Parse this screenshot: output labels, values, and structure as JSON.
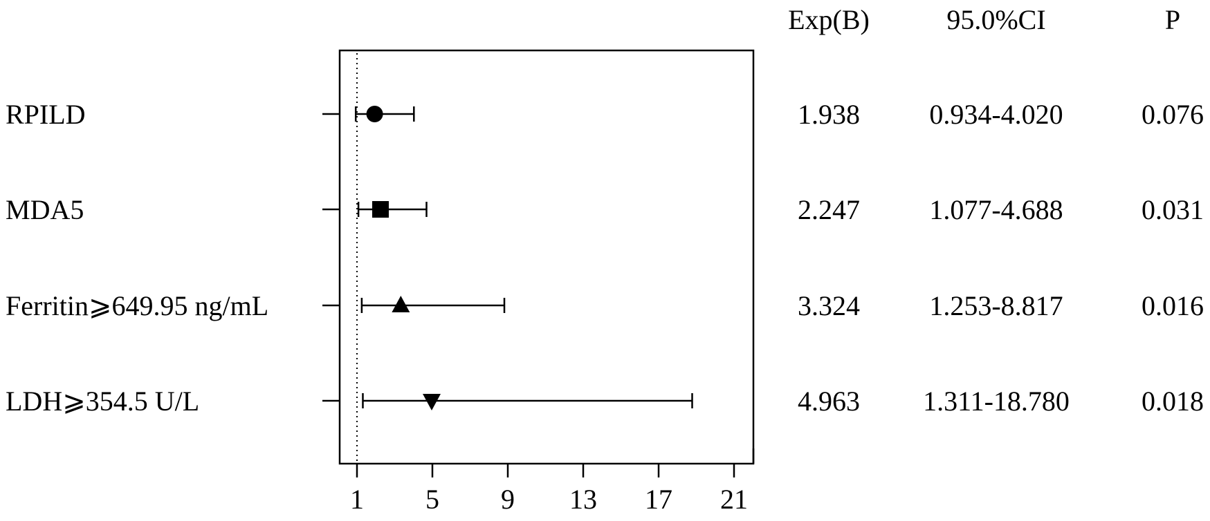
{
  "chart_data": {
    "type": "forest",
    "title": "",
    "xlabel": "",
    "ylabel": "",
    "xlim": [
      0,
      22
    ],
    "x_ticks": [
      1,
      5,
      9,
      13,
      17,
      21
    ],
    "x_tick_labels": [
      "1",
      "5",
      "9",
      "13",
      "17",
      "21"
    ],
    "reference_line": 1,
    "grid": false,
    "legend": "none",
    "columns": {
      "exp_b": "Exp(B)",
      "ci": "95.0%CI",
      "p": "P"
    },
    "rows": [
      {
        "label": "RPILD",
        "exp_b": "1.938",
        "ci": "0.934-4.020",
        "p": "0.076",
        "estimate": 1.938,
        "ci_low": 0.934,
        "ci_high": 4.02,
        "marker": "circle"
      },
      {
        "label": "MDA5",
        "exp_b": "2.247",
        "ci": "1.077-4.688",
        "p": "0.031",
        "estimate": 2.247,
        "ci_low": 1.077,
        "ci_high": 4.688,
        "marker": "square"
      },
      {
        "label": "Ferritin⩾649.95 ng/mL",
        "exp_b": "3.324",
        "ci": "1.253-8.817",
        "p": "0.016",
        "estimate": 3.324,
        "ci_low": 1.253,
        "ci_high": 8.817,
        "marker": "triangle-up"
      },
      {
        "label": "LDH⩾354.5 U/L",
        "exp_b": "4.963",
        "ci": "1.311-18.780",
        "p": "0.018",
        "estimate": 4.963,
        "ci_low": 1.311,
        "ci_high": 18.78,
        "marker": "triangle-down"
      }
    ],
    "colors": {
      "marks": "#000000",
      "background": "#ffffff"
    }
  }
}
